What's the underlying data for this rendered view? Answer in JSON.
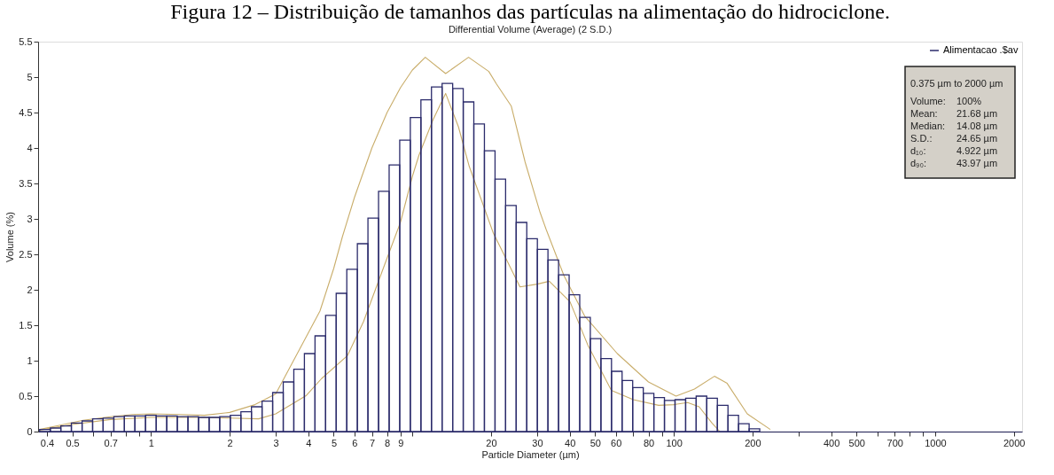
{
  "chart_data": {
    "type": "histogram",
    "title": "Figura 12 – Distribuição de tamanhos das partículas na alimentação do hidrociclone.",
    "subtitle": "Differential Volume (Average) (2 S.D.)",
    "xlabel": "Particle Diameter (µm)",
    "ylabel": "Volume (%)",
    "log": "x",
    "grid": false,
    "legend": "top right",
    "xlim": [
      0.37,
      2150
    ],
    "ylim": [
      0,
      5.5
    ],
    "xticks": [
      0.4,
      0.5,
      {
        "value": 0.6,
        "label": null
      },
      0.7,
      {
        "value": 0.8,
        "label": null
      },
      {
        "value": 0.9,
        "label": null
      },
      1,
      2,
      3,
      4,
      5,
      6,
      7,
      8,
      9,
      {
        "value": 10,
        "label": null
      },
      20,
      30,
      40,
      50,
      60,
      {
        "value": 70,
        "label": null
      },
      80,
      {
        "value": 90,
        "label": null
      },
      100,
      200,
      {
        "value": 300,
        "label": null
      },
      400,
      500,
      {
        "value": 600,
        "label": null
      },
      700,
      {
        "value": 800,
        "label": null
      },
      {
        "value": 900,
        "label": null
      },
      1000,
      2000
    ],
    "yticks": [
      0,
      0.5,
      1,
      1.5,
      2,
      2.5,
      3,
      3.5,
      4,
      4.5,
      5,
      5.5
    ],
    "bins": [
      0.375,
      0.412,
      0.452,
      0.496,
      0.545,
      0.598,
      0.656,
      0.721,
      0.791,
      0.868,
      0.953,
      1.047,
      1.149,
      1.261,
      1.385,
      1.52,
      1.669,
      1.832,
      2.011,
      2.208,
      2.423,
      2.66,
      2.92,
      3.206,
      3.519,
      3.863,
      4.241,
      4.656,
      5.111,
      5.611,
      6.159,
      6.761,
      7.422,
      8.148,
      8.944,
      9.819,
      10.78,
      11.83,
      12.99,
      14.26,
      15.65,
      17.18,
      18.86,
      20.71,
      22.73,
      24.95,
      27.39,
      30.07,
      33.01,
      36.24,
      39.78,
      43.67,
      47.94,
      52.63,
      57.77,
      63.42,
      69.62,
      76.43,
      83.9,
      92.1,
      101.1,
      111.0,
      121.8,
      133.7,
      146.8,
      161.2,
      176.9,
      194.2,
      213.2
    ],
    "series": [
      {
        "name": "Alimentacao .$av",
        "color": "#2b2b6b",
        "values": [
          0.03,
          0.05,
          0.08,
          0.12,
          0.15,
          0.18,
          0.19,
          0.21,
          0.22,
          0.22,
          0.23,
          0.22,
          0.22,
          0.21,
          0.21,
          0.2,
          0.2,
          0.21,
          0.23,
          0.28,
          0.35,
          0.43,
          0.55,
          0.7,
          0.88,
          1.1,
          1.35,
          1.64,
          1.95,
          2.29,
          2.65,
          3.01,
          3.39,
          3.76,
          4.11,
          4.43,
          4.68,
          4.86,
          4.91,
          4.84,
          4.65,
          4.34,
          3.96,
          3.56,
          3.19,
          2.95,
          2.72,
          2.57,
          2.42,
          2.21,
          1.93,
          1.61,
          1.31,
          1.03,
          0.85,
          0.72,
          0.62,
          0.54,
          0.48,
          0.44,
          0.45,
          0.47,
          0.5,
          0.47,
          0.37,
          0.23,
          0.11,
          0.04
        ]
      },
      {
        "type": "line",
        "color": "#c9ad6a",
        "x": [
          0.375,
          0.45,
          0.55,
          0.7,
          0.85,
          1,
          1.3,
          1.6,
          2,
          2.5,
          3,
          3.7,
          4.43,
          5,
          5.4,
          6,
          7,
          8,
          9,
          10,
          11.2,
          13.4,
          16.4,
          19.6,
          21,
          23.9,
          27,
          30.8,
          32.5,
          38,
          45.6,
          60.8,
          80,
          102,
          120,
          143,
          160,
          191,
          234
        ],
        "values": [
          0.03,
          0.09,
          0.16,
          0.21,
          0.24,
          0.25,
          0.24,
          0.23,
          0.27,
          0.38,
          0.53,
          1.16,
          1.7,
          2.3,
          2.75,
          3.3,
          4.0,
          4.5,
          4.85,
          5.1,
          5.28,
          5.05,
          5.28,
          5.08,
          4.9,
          4.59,
          3.8,
          3.09,
          2.85,
          2.2,
          1.63,
          1.1,
          0.7,
          0.5,
          0.6,
          0.78,
          0.68,
          0.25,
          0.03
        ]
      },
      {
        "type": "line",
        "color": "#c9ad6a",
        "x": [
          0.375,
          0.5,
          0.7,
          1,
          1.5,
          2,
          2.58,
          3,
          3.93,
          4.5,
          5.64,
          6.5,
          8.1,
          9,
          10,
          10.6,
          12,
          13.4,
          15,
          16.5,
          20.4,
          25.8,
          30,
          33.4,
          40.1,
          46.9,
          57.7,
          70,
          87.5,
          100,
          113,
          125,
          140,
          150
        ],
        "values": [
          0.02,
          0.1,
          0.17,
          0.2,
          0.2,
          0.19,
          0.18,
          0.25,
          0.51,
          0.75,
          1.07,
          1.55,
          2.5,
          2.95,
          3.6,
          3.9,
          4.4,
          4.77,
          4.3,
          3.74,
          2.8,
          2.04,
          2.08,
          2.12,
          1.83,
          1.22,
          0.58,
          0.45,
          0.37,
          0.38,
          0.41,
          0.35,
          0.12,
          0.0
        ]
      }
    ],
    "annotations": [
      "0.375 µm to 2000 µm",
      "Volume: 100%",
      "Mean: 21.68 µm",
      "Median: 14.08 µm",
      "S.D.: 24.65 µm",
      "d₁₀: 4.922 µm",
      "d₉₀: 43.97 µm"
    ]
  }
}
